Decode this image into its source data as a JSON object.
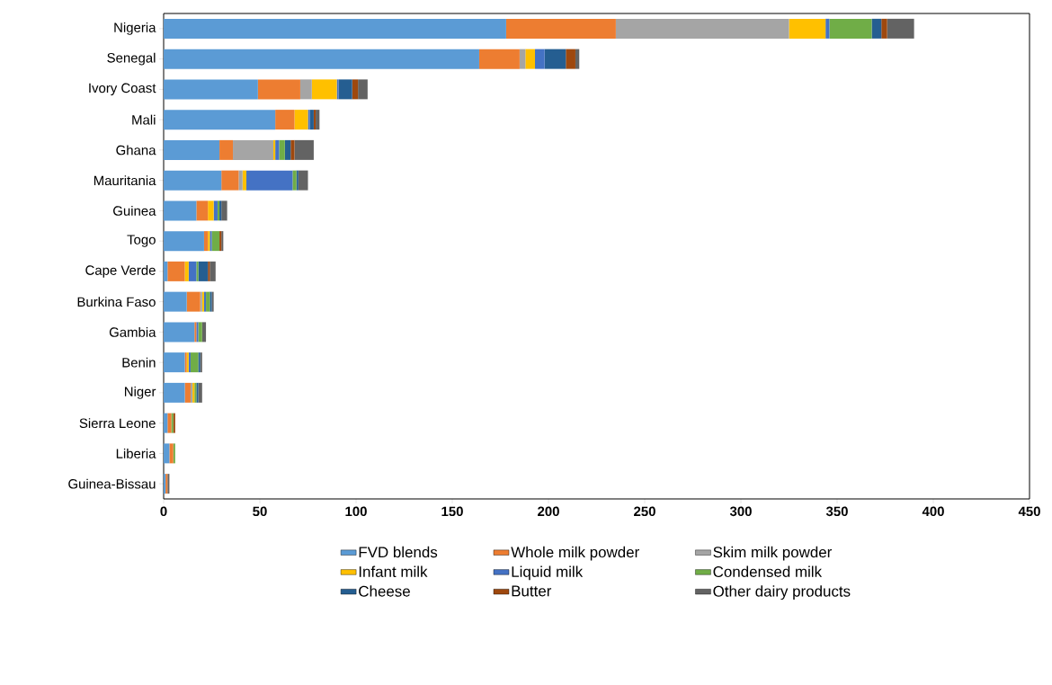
{
  "chart_data": {
    "type": "bar",
    "orientation": "horizontal",
    "stacked": true,
    "legend": "bottom",
    "grid": false,
    "categories": [
      "Nigeria",
      "Senegal",
      "Ivory Coast",
      "Mali",
      "Ghana",
      "Mauritania",
      "Guinea",
      "Togo",
      "Cape Verde",
      "Burkina Faso",
      "Gambia",
      "Benin",
      "Niger",
      "Sierra Leone",
      "Liberia",
      "Guinea-Bissau"
    ],
    "xlim": [
      0,
      450
    ],
    "xticks": [
      0,
      50,
      100,
      150,
      200,
      250,
      300,
      350,
      400,
      450
    ],
    "series": [
      {
        "name": "FVD blends",
        "color": "#5b9bd5",
        "values": [
          178,
          164,
          49,
          58,
          29,
          30,
          17,
          21,
          2,
          12,
          16,
          11,
          11,
          2,
          3,
          1
        ]
      },
      {
        "name": "Whole milk powder",
        "color": "#ed7d31",
        "values": [
          57,
          21,
          22,
          10,
          7,
          9,
          6,
          2,
          9,
          7,
          1,
          1,
          3,
          2,
          2,
          1
        ]
      },
      {
        "name": "Skim milk powder",
        "color": "#a5a5a5",
        "values": [
          90,
          3,
          6,
          0,
          21,
          2,
          0,
          0,
          0,
          1,
          0,
          0,
          1,
          0,
          0,
          0
        ]
      },
      {
        "name": "Infant milk",
        "color": "#ffc000",
        "values": [
          19,
          5,
          13,
          7,
          1,
          2,
          3,
          1,
          2,
          1,
          0,
          1,
          1,
          0,
          0,
          0
        ]
      },
      {
        "name": "Liquid milk",
        "color": "#4472c4",
        "values": [
          2,
          5,
          1,
          1,
          2,
          24,
          2,
          1,
          4,
          1,
          1,
          1,
          0,
          0,
          0,
          0
        ]
      },
      {
        "name": "Condensed milk",
        "color": "#70ad47",
        "values": [
          22,
          0,
          0,
          0,
          3,
          2,
          1,
          4,
          1,
          2,
          2,
          4,
          1,
          1,
          1,
          0
        ]
      },
      {
        "name": "Cheese",
        "color": "#255e91",
        "values": [
          5,
          11,
          7,
          2,
          3,
          1,
          1,
          0,
          5,
          1,
          0,
          1,
          1,
          0,
          0,
          0
        ]
      },
      {
        "name": "Butter",
        "color": "#9e480e",
        "values": [
          3,
          5,
          3,
          1,
          2,
          0,
          0,
          1,
          1,
          0,
          0,
          0,
          0,
          1,
          0,
          0
        ]
      },
      {
        "name": "Other dairy products",
        "color": "#636363",
        "values": [
          14,
          2,
          5,
          2,
          10,
          5,
          3,
          1,
          3,
          1,
          2,
          1,
          2,
          0,
          0,
          1
        ]
      }
    ]
  }
}
